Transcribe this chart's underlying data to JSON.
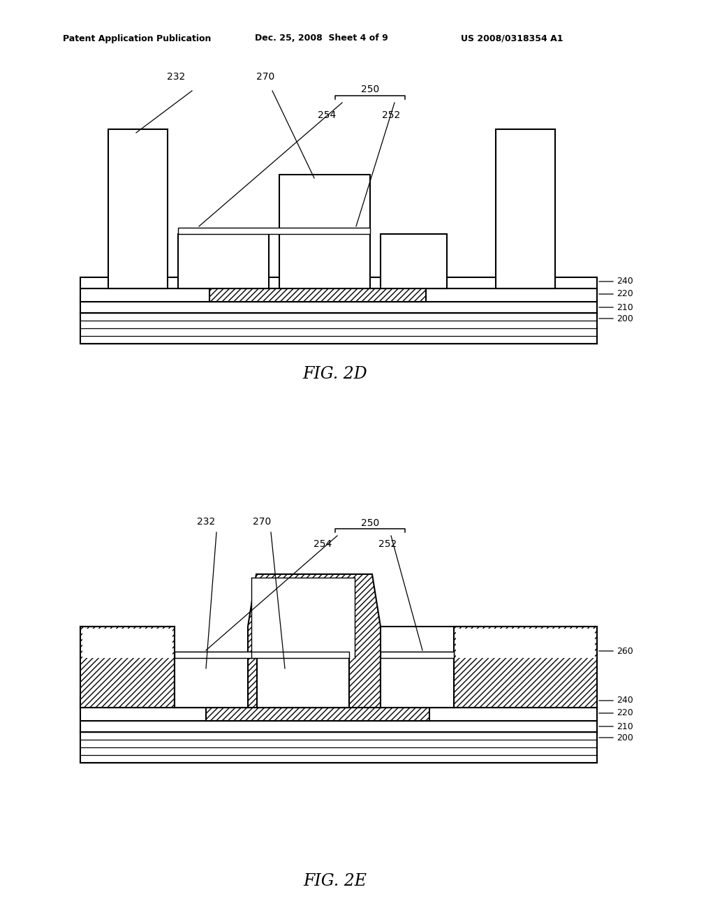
{
  "bg_color": "#ffffff",
  "header_left": "Patent Application Publication",
  "header_mid": "Dec. 25, 2008  Sheet 4 of 9",
  "header_right": "US 2008/0318354 A1",
  "fig2d_label": "FIG. 2D",
  "fig2e_label": "FIG. 2E"
}
